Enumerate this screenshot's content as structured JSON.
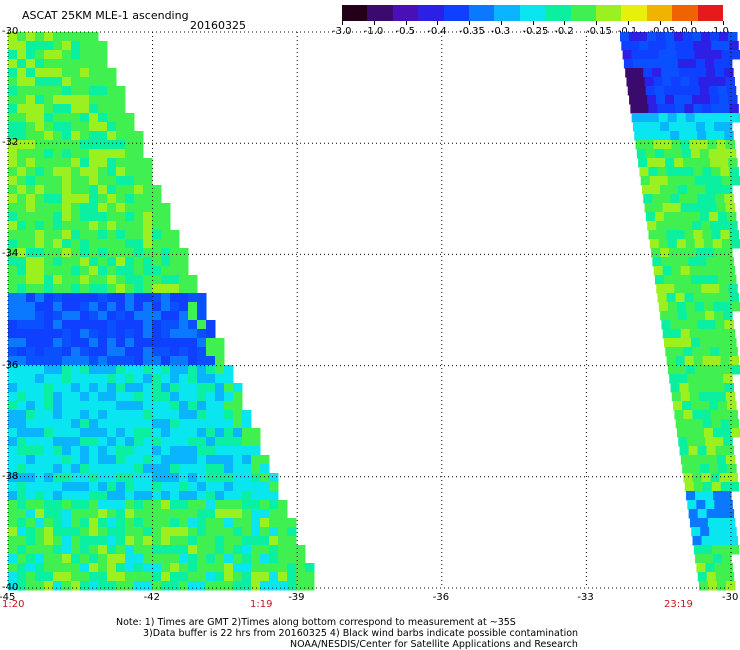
{
  "header": {
    "title": "ASCAT 25KM MLE-1 ascending",
    "date": "20160325"
  },
  "colorbar": {
    "labels": [
      "-3.0",
      "-1.0",
      "-0.5",
      "-0.4",
      "-0.35",
      "-0.3",
      "-0.25",
      "-0.2",
      "-0.15",
      "-0.1",
      "-0.05",
      "0.0",
      "1.0"
    ],
    "colors": [
      "#230017",
      "#3a0a6e",
      "#4a10b8",
      "#2c20e6",
      "#1040ff",
      "#0a78ff",
      "#0ab4ff",
      "#0ae6f0",
      "#0af0a0",
      "#40f050",
      "#9cf020",
      "#e6f00a",
      "#f0b400",
      "#f06400",
      "#e61a1a"
    ]
  },
  "map": {
    "lat_labels": [
      "-30",
      "-32",
      "-34",
      "-36",
      "-38",
      "-40"
    ],
    "lon_labels": [
      "-45",
      "-42",
      "-39",
      "-36",
      "-33",
      "-30"
    ],
    "time_labels": [
      "1:20",
      "1:19",
      "23:19"
    ]
  },
  "notes": {
    "line1": "Note: 1) Times are GMT 2)Times along bottom correspond to measurement at ~35S",
    "line2": "3)Data buffer is 22 hrs from 20160325 4) Black wind barbs indicate possible contamination",
    "line3": "NOAA/NESDIS/Center for Satellite Applications and Research"
  }
}
